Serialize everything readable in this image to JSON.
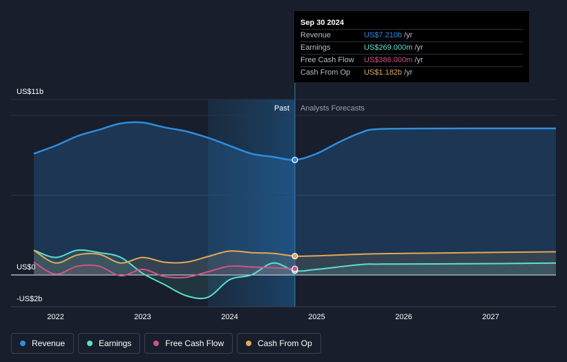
{
  "chart_data": {
    "type": "line",
    "y_axis": {
      "top_label": "US$11b",
      "zero_label": "US$0",
      "bottom_label": "-US$2b",
      "ylim": [
        -2,
        11
      ]
    },
    "x_axis": {
      "tick_labels": [
        "2022",
        "2023",
        "2024",
        "2025",
        "2026",
        "2027"
      ],
      "xlim": [
        2021.5,
        2027.75
      ]
    },
    "regions": {
      "past_label": "Past",
      "forecast_label": "Analysts Forecasts",
      "past_start": 2023.75,
      "divider": 2024.75
    },
    "series": [
      {
        "name": "Revenue",
        "color": "#2e8ee0",
        "points": [
          [
            2021.75,
            7.6
          ],
          [
            2022.0,
            8.1
          ],
          [
            2022.25,
            8.7
          ],
          [
            2022.5,
            9.1
          ],
          [
            2022.75,
            9.5
          ],
          [
            2023.0,
            9.55
          ],
          [
            2023.25,
            9.25
          ],
          [
            2023.5,
            9.0
          ],
          [
            2023.75,
            8.6
          ],
          [
            2024.0,
            8.1
          ],
          [
            2024.25,
            7.6
          ],
          [
            2024.5,
            7.4
          ],
          [
            2024.75,
            7.21
          ],
          [
            2025.0,
            7.6
          ],
          [
            2025.25,
            8.3
          ],
          [
            2025.5,
            8.9
          ],
          [
            2025.75,
            9.15
          ],
          [
            2026.75,
            9.18
          ],
          [
            2027.75,
            9.18
          ]
        ]
      },
      {
        "name": "Earnings",
        "color": "#5ee0cf",
        "points": [
          [
            2021.75,
            1.55
          ],
          [
            2022.0,
            1.1
          ],
          [
            2022.25,
            1.55
          ],
          [
            2022.5,
            1.4
          ],
          [
            2022.75,
            1.1
          ],
          [
            2023.0,
            0.1
          ],
          [
            2023.25,
            -0.6
          ],
          [
            2023.5,
            -1.3
          ],
          [
            2023.75,
            -1.4
          ],
          [
            2024.0,
            -0.3
          ],
          [
            2024.25,
            0.0
          ],
          [
            2024.5,
            0.75
          ],
          [
            2024.75,
            0.269
          ],
          [
            2025.0,
            0.35
          ],
          [
            2025.5,
            0.65
          ],
          [
            2025.75,
            0.68
          ],
          [
            2026.75,
            0.7
          ],
          [
            2027.75,
            0.75
          ]
        ]
      },
      {
        "name": "Free Cash Flow",
        "color": "#d0538a",
        "points": [
          [
            2021.75,
            0.8
          ],
          [
            2022.0,
            0.05
          ],
          [
            2022.25,
            0.55
          ],
          [
            2022.5,
            0.55
          ],
          [
            2022.75,
            -0.05
          ],
          [
            2023.0,
            0.35
          ],
          [
            2023.25,
            -0.1
          ],
          [
            2023.5,
            -0.15
          ],
          [
            2023.75,
            0.2
          ],
          [
            2024.0,
            0.55
          ],
          [
            2024.25,
            0.5
          ],
          [
            2024.5,
            0.45
          ],
          [
            2024.75,
            0.386
          ]
        ]
      },
      {
        "name": "Cash From Op",
        "color": "#e6a855",
        "points": [
          [
            2021.75,
            1.55
          ],
          [
            2022.0,
            0.75
          ],
          [
            2022.25,
            1.25
          ],
          [
            2022.5,
            1.3
          ],
          [
            2022.75,
            0.75
          ],
          [
            2023.0,
            1.1
          ],
          [
            2023.25,
            0.8
          ],
          [
            2023.5,
            0.8
          ],
          [
            2023.75,
            1.15
          ],
          [
            2024.0,
            1.5
          ],
          [
            2024.25,
            1.4
          ],
          [
            2024.5,
            1.35
          ],
          [
            2024.75,
            1.182
          ],
          [
            2025.0,
            1.2
          ],
          [
            2025.5,
            1.3
          ],
          [
            2026.0,
            1.35
          ],
          [
            2026.75,
            1.4
          ],
          [
            2027.75,
            1.45
          ]
        ]
      }
    ]
  },
  "tooltip": {
    "date": "Sep 30 2024",
    "rows": [
      {
        "label": "Revenue",
        "value": "US$7.210b",
        "unit": "/yr",
        "color": "#2e8ee0"
      },
      {
        "label": "Earnings",
        "value": "US$269.000m",
        "unit": "/yr",
        "color": "#5ee0cf"
      },
      {
        "label": "Free Cash Flow",
        "value": "US$386.000m",
        "unit": "/yr",
        "color": "#d0538a"
      },
      {
        "label": "Cash From Op",
        "value": "US$1.182b",
        "unit": "/yr",
        "color": "#e6a855"
      }
    ]
  },
  "legend": {
    "items": [
      {
        "label": "Revenue",
        "color": "#2e8ee0"
      },
      {
        "label": "Earnings",
        "color": "#5ee0cf"
      },
      {
        "label": "Free Cash Flow",
        "color": "#d0538a"
      },
      {
        "label": "Cash From Op",
        "color": "#e6a855"
      }
    ]
  }
}
